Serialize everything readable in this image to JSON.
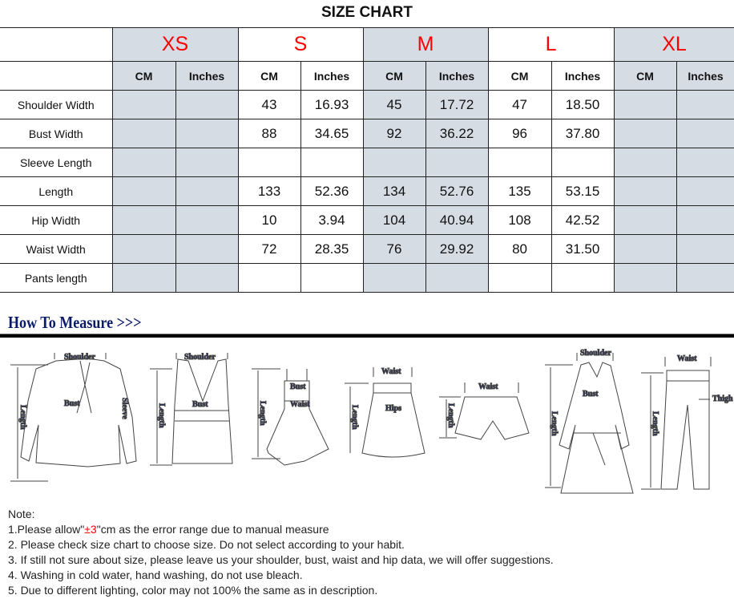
{
  "title": "SIZE CHART",
  "sizes": [
    "XS",
    "S",
    "M",
    "L",
    "XL"
  ],
  "units": [
    "CM",
    "Inches"
  ],
  "rows": [
    {
      "label": "Shoulder Width",
      "values": [
        "",
        "",
        "43",
        "16.93",
        "45",
        "17.72",
        "47",
        "18.50",
        "",
        ""
      ]
    },
    {
      "label": "Bust Width",
      "values": [
        "",
        "",
        "88",
        "34.65",
        "92",
        "36.22",
        "96",
        "37.80",
        "",
        ""
      ]
    },
    {
      "label": "Sleeve Length",
      "values": [
        "",
        "",
        "",
        "",
        "",
        "",
        "",
        "",
        "",
        ""
      ]
    },
    {
      "label": "Length",
      "values": [
        "",
        "",
        "133",
        "52.36",
        "134",
        "52.76",
        "135",
        "53.15",
        "",
        ""
      ]
    },
    {
      "label": "Hip Width",
      "values": [
        "",
        "",
        "10",
        "3.94",
        "104",
        "40.94",
        "108",
        "42.52",
        "",
        ""
      ]
    },
    {
      "label": "Waist Width",
      "values": [
        "",
        "",
        "72",
        "28.35",
        "76",
        "29.92",
        "80",
        "31.50",
        "",
        ""
      ]
    },
    {
      "label": "Pants length",
      "values": [
        "",
        "",
        "",
        "",
        "",
        "",
        "",
        "",
        "",
        ""
      ]
    }
  ],
  "colors": {
    "size_label": "#ff0000",
    "shaded_column": "#d6dce4",
    "measure_heading": "#0b1a6b"
  },
  "measure": {
    "heading": "How To Measure >>>",
    "labels": {
      "shoulder": "Shoulder",
      "bust": "Bust",
      "sleeve": "Sleeve",
      "length": "Length",
      "waist": "Waist",
      "hips": "Hips",
      "thigh": "Thigh"
    }
  },
  "notes": {
    "heading": "Note:",
    "n1_pre": "1.Please allow\"",
    "n1_red": "±3",
    "n1_post": "\"cm as the error range due to manual measure",
    "n2": "2. Please check size chart to choose size. Do not select according to your habit.",
    "n3": "3. If still not sure about size, please leave us your shoulder, bust, waist and hip data, we will offer suggestions.",
    "n4": "4. Washing in cold water, hand washing, do not use bleach.",
    "n5": "5. Due to different lighting, color may not 100% the same as in description."
  }
}
